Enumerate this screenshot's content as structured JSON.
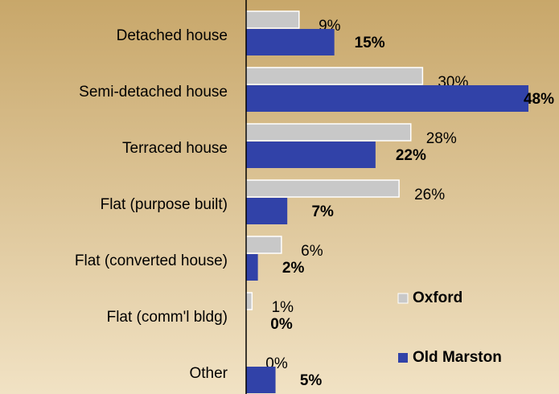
{
  "chart_data": {
    "type": "hbar",
    "categories": [
      "Detached house",
      "Semi-detached house",
      "Terraced house",
      "Flat (purpose built)",
      "Flat (converted house)",
      "Flat (comm'l bldg)",
      "Other"
    ],
    "series": [
      {
        "name": "Oxford",
        "color": "#c8c8c8",
        "values": [
          9,
          30,
          28,
          26,
          6,
          1,
          0
        ],
        "value_labels": [
          "9%",
          "30%",
          "28%",
          "26%",
          "6%",
          "1%",
          "0%"
        ]
      },
      {
        "name": "Old Marston",
        "color": "#3142a8",
        "values": [
          15,
          48,
          22,
          7,
          2,
          0,
          5
        ],
        "value_labels": [
          "15%",
          "48%",
          "22%",
          "7%",
          "2%",
          "0%",
          "5%"
        ]
      }
    ],
    "xlim": [
      0,
      48
    ],
    "legend": "lower right"
  }
}
